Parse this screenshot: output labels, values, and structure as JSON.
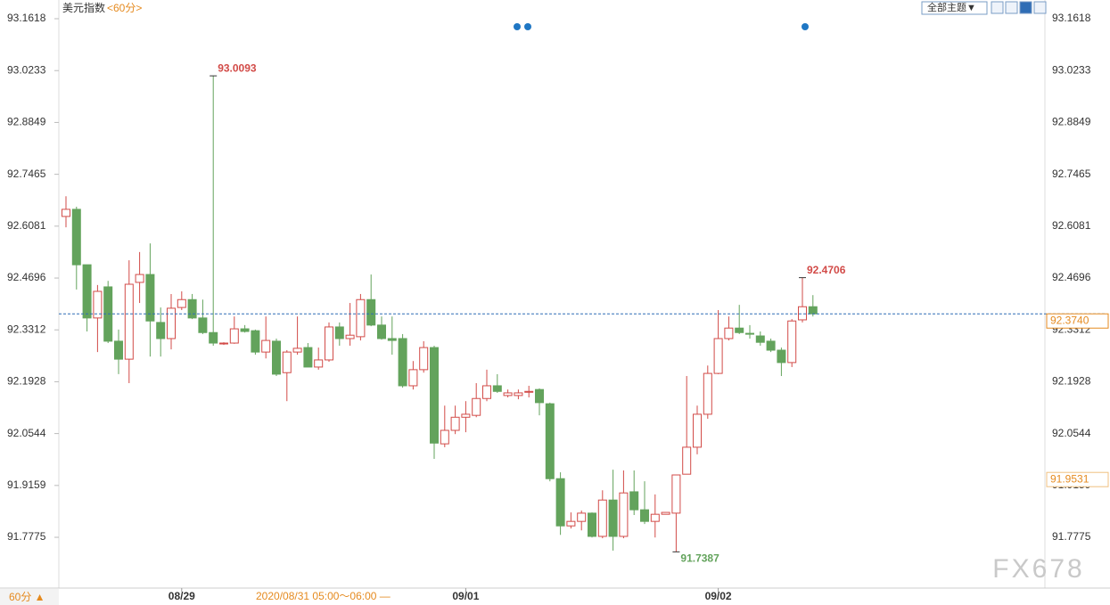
{
  "chart_data": {
    "type": "candlestick",
    "title": "美元指数",
    "subtitle": "<60分>",
    "toolbar_label": "全部主题▼",
    "period_label": "60分 ▲",
    "time_range": "2020/08/31 05:00～06:00 —",
    "watermark": "FX678",
    "categories": [
      null,
      null,
      null,
      null,
      null,
      null,
      null,
      null,
      null,
      null,
      null,
      "08/29",
      null,
      null,
      null,
      null,
      null,
      null,
      null,
      null,
      null,
      null,
      null,
      null,
      null,
      null,
      null,
      null,
      null,
      null,
      null,
      null,
      null,
      null,
      null,
      null,
      null,
      null,
      "09/01",
      null,
      null,
      null,
      null,
      null,
      null,
      null,
      null,
      null,
      null,
      null,
      null,
      null,
      null,
      null,
      null,
      null,
      null,
      null,
      null,
      null,
      null,
      null,
      "09/02",
      null,
      null,
      null,
      null,
      null,
      null,
      null,
      null,
      null
    ],
    "open": [
      92.634,
      92.653,
      92.505,
      92.363,
      92.446,
      92.301,
      92.253,
      92.458,
      92.479,
      92.351,
      92.308,
      92.391,
      92.412,
      92.363,
      92.324,
      92.294,
      92.296,
      92.334,
      92.329,
      92.272,
      92.301,
      92.217,
      92.272,
      92.284,
      92.232,
      92.251,
      92.339,
      92.308,
      92.313,
      92.412,
      92.344,
      92.308,
      92.308,
      92.182,
      92.225,
      92.284,
      92.027,
      92.063,
      92.098,
      92.103,
      92.148,
      92.182,
      92.156,
      92.156,
      92.165,
      92.172,
      92.134,
      91.934,
      91.808,
      91.82,
      91.842,
      91.78,
      91.877,
      91.78,
      91.899,
      91.851,
      91.82,
      91.839,
      91.842,
      91.946,
      92.018,
      92.106,
      92.215,
      92.308,
      92.336,
      92.322,
      92.315,
      92.301,
      92.277,
      92.244,
      92.358,
      92.393
    ],
    "high": [
      92.688,
      92.66,
      92.505,
      92.451,
      92.462,
      92.332,
      92.517,
      92.539,
      92.562,
      92.391,
      92.427,
      92.434,
      92.427,
      92.412,
      93.0093,
      92.298,
      92.367,
      92.344,
      92.332,
      92.367,
      92.308,
      92.277,
      92.367,
      92.296,
      92.284,
      92.351,
      92.351,
      92.403,
      92.427,
      92.479,
      92.367,
      92.367,
      92.32,
      92.248,
      92.301,
      92.289,
      92.129,
      92.129,
      92.141,
      92.189,
      92.225,
      92.213,
      92.172,
      92.172,
      92.182,
      92.175,
      92.137,
      91.951,
      91.844,
      91.849,
      91.844,
      91.903,
      91.958,
      91.956,
      91.956,
      91.927,
      91.892,
      91.844,
      91.944,
      92.208,
      92.129,
      92.236,
      92.384,
      92.367,
      92.398,
      92.344,
      92.327,
      92.308,
      92.284,
      92.36,
      92.4706,
      92.424
    ],
    "low": [
      92.605,
      92.439,
      92.327,
      92.272,
      92.296,
      92.213,
      92.189,
      92.403,
      92.26,
      92.26,
      92.279,
      92.384,
      92.36,
      92.32,
      92.289,
      92.291,
      92.294,
      92.324,
      92.265,
      92.255,
      92.208,
      92.141,
      92.265,
      92.232,
      92.225,
      92.246,
      92.289,
      92.289,
      92.303,
      92.341,
      92.305,
      92.265,
      92.177,
      92.172,
      92.217,
      91.987,
      92.018,
      92.053,
      92.058,
      92.098,
      92.141,
      92.163,
      92.151,
      92.146,
      92.151,
      92.103,
      91.927,
      91.784,
      91.801,
      91.796,
      91.777,
      91.775,
      91.742,
      91.775,
      91.837,
      91.813,
      91.777,
      91.839,
      91.7387,
      91.946,
      91.999,
      92.094,
      92.213,
      92.303,
      92.32,
      92.308,
      92.289,
      92.272,
      92.208,
      92.232,
      92.351,
      92.367
    ],
    "close": [
      92.653,
      92.505,
      92.363,
      92.434,
      92.301,
      92.253,
      92.453,
      92.479,
      92.355,
      92.308,
      92.389,
      92.412,
      92.363,
      92.324,
      92.296,
      92.296,
      92.334,
      92.327,
      92.272,
      92.303,
      92.213,
      92.272,
      92.282,
      92.232,
      92.251,
      92.339,
      92.308,
      92.317,
      92.412,
      92.344,
      92.308,
      92.303,
      92.182,
      92.225,
      92.284,
      92.029,
      92.063,
      92.098,
      92.106,
      92.148,
      92.182,
      92.167,
      92.163,
      92.163,
      92.167,
      92.137,
      91.934,
      91.808,
      91.82,
      91.842,
      91.78,
      91.877,
      91.78,
      91.896,
      91.851,
      91.82,
      91.839,
      91.844,
      91.944,
      92.018,
      92.106,
      92.215,
      92.308,
      92.336,
      92.324,
      92.32,
      92.298,
      92.277,
      92.244,
      92.355,
      92.393,
      92.374
    ],
    "up_color": "#d24b48",
    "down_color": "#63a35c",
    "ylim": [
      91.642,
      93.207
    ],
    "yticks": [
      91.7775,
      91.9159,
      92.0544,
      92.1928,
      92.3312,
      92.4696,
      92.6081,
      92.7465,
      92.8849,
      93.0233,
      93.1618
    ],
    "last_price": {
      "value": 92.374,
      "label": "92.3740"
    },
    "cursor_price": {
      "value": 91.9531,
      "label": "91.9531"
    },
    "annotations": [
      {
        "index": 14,
        "field": "high"
      },
      {
        "index": 70,
        "field": "high"
      },
      {
        "index": 58,
        "field": "low"
      }
    ]
  }
}
